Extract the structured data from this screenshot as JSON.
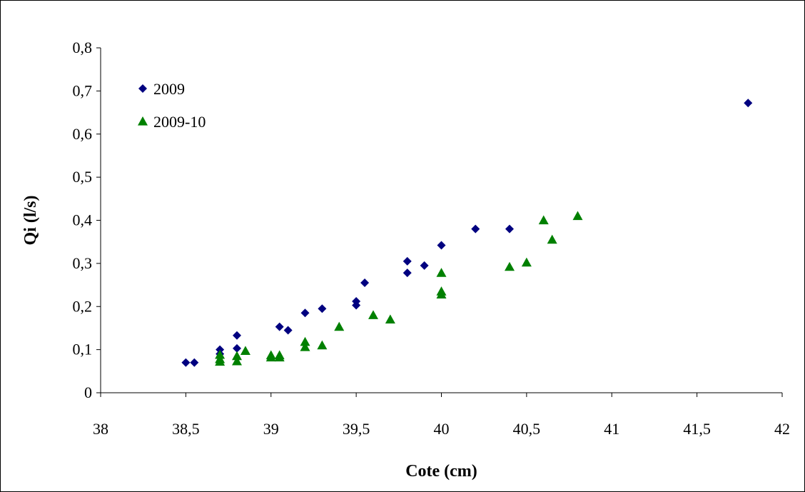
{
  "chart_data": {
    "type": "scatter",
    "title": "",
    "xlabel": "Cote (cm)",
    "ylabel": "Qi (l/s)",
    "xlim": [
      38,
      42
    ],
    "ylim": [
      0,
      0.8
    ],
    "x_ticks": [
      "38",
      "38,5",
      "39",
      "39,5",
      "40",
      "40,5",
      "41",
      "41,5",
      "42"
    ],
    "y_ticks": [
      "0",
      "0,1",
      "0,2",
      "0,3",
      "0,4",
      "0,5",
      "0,6",
      "0,7",
      "0,8"
    ],
    "grid": false,
    "legend_position": "top-left",
    "series": [
      {
        "name": "2009",
        "marker": "diamond",
        "color": "#000080",
        "points": [
          [
            38.5,
            0.07
          ],
          [
            38.55,
            0.07
          ],
          [
            38.7,
            0.1
          ],
          [
            38.7,
            0.09
          ],
          [
            38.8,
            0.133
          ],
          [
            38.8,
            0.103
          ],
          [
            39.05,
            0.153
          ],
          [
            39.1,
            0.145
          ],
          [
            39.2,
            0.185
          ],
          [
            39.3,
            0.195
          ],
          [
            39.5,
            0.212
          ],
          [
            39.5,
            0.203
          ],
          [
            39.55,
            0.255
          ],
          [
            39.8,
            0.305
          ],
          [
            39.8,
            0.278
          ],
          [
            39.9,
            0.295
          ],
          [
            40.0,
            0.342
          ],
          [
            40.2,
            0.38
          ],
          [
            40.4,
            0.38
          ],
          [
            41.8,
            0.672
          ]
        ]
      },
      {
        "name": "2009-10",
        "marker": "triangle",
        "color": "#008000",
        "points": [
          [
            38.7,
            0.088
          ],
          [
            38.7,
            0.078
          ],
          [
            38.7,
            0.072
          ],
          [
            38.8,
            0.085
          ],
          [
            38.8,
            0.073
          ],
          [
            38.85,
            0.097
          ],
          [
            39.0,
            0.087
          ],
          [
            39.0,
            0.082
          ],
          [
            39.05,
            0.087
          ],
          [
            39.05,
            0.082
          ],
          [
            39.2,
            0.118
          ],
          [
            39.2,
            0.106
          ],
          [
            39.3,
            0.11
          ],
          [
            39.4,
            0.153
          ],
          [
            39.6,
            0.18
          ],
          [
            39.7,
            0.17
          ],
          [
            40.0,
            0.278
          ],
          [
            40.0,
            0.235
          ],
          [
            40.0,
            0.228
          ],
          [
            40.4,
            0.292
          ],
          [
            40.5,
            0.302
          ],
          [
            40.6,
            0.4
          ],
          [
            40.65,
            0.355
          ],
          [
            40.8,
            0.41
          ]
        ]
      }
    ]
  }
}
